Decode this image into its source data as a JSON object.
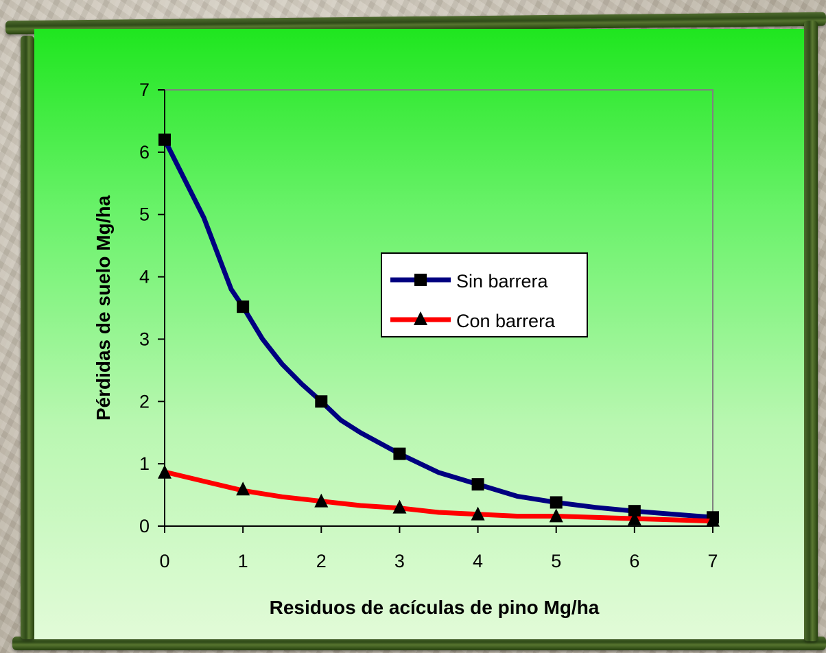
{
  "chart_data": {
    "type": "line",
    "xlabel": "Residuos de acículas de pino Mg/ha",
    "ylabel": "Pérdidas de suelo Mg/ha",
    "xlim": [
      0,
      7
    ],
    "ylim": [
      0,
      7
    ],
    "x_ticks": [
      "0",
      "1",
      "2",
      "3",
      "4",
      "5",
      "6",
      "7"
    ],
    "y_ticks": [
      "0",
      "1",
      "2",
      "3",
      "4",
      "5",
      "6",
      "7"
    ],
    "grid": false,
    "legend_position": "center-right",
    "series": [
      {
        "name": "Sin barrera",
        "color": "#000080",
        "marker": "square",
        "markers": [
          [
            0,
            6.2
          ],
          [
            1,
            3.52
          ],
          [
            2,
            2.0
          ],
          [
            3,
            1.16
          ],
          [
            4,
            0.67
          ],
          [
            5,
            0.38
          ],
          [
            6,
            0.24
          ],
          [
            7,
            0.14
          ]
        ],
        "curve": [
          [
            0,
            6.2
          ],
          [
            0.5,
            4.95
          ],
          [
            0.85,
            3.8
          ],
          [
            1,
            3.52
          ],
          [
            1.25,
            3.0
          ],
          [
            1.5,
            2.6
          ],
          [
            1.75,
            2.28
          ],
          [
            2,
            2.0
          ],
          [
            2.25,
            1.7
          ],
          [
            2.5,
            1.5
          ],
          [
            3,
            1.16
          ],
          [
            3.5,
            0.86
          ],
          [
            4,
            0.67
          ],
          [
            4.5,
            0.48
          ],
          [
            5,
            0.38
          ],
          [
            5.5,
            0.3
          ],
          [
            6,
            0.24
          ],
          [
            6.5,
            0.19
          ],
          [
            7,
            0.14
          ]
        ]
      },
      {
        "name": "Con barrera",
        "color": "#ff0000",
        "marker": "triangle",
        "markers": [
          [
            0,
            0.85
          ],
          [
            1,
            0.58
          ],
          [
            2,
            0.39
          ],
          [
            3,
            0.29
          ],
          [
            4,
            0.18
          ],
          [
            5,
            0.15
          ],
          [
            6,
            0.1
          ],
          [
            7,
            0.08
          ]
        ],
        "curve": [
          [
            0,
            0.87
          ],
          [
            0.5,
            0.72
          ],
          [
            1,
            0.57
          ],
          [
            1.5,
            0.47
          ],
          [
            2,
            0.4
          ],
          [
            2.5,
            0.33
          ],
          [
            3,
            0.29
          ],
          [
            3.5,
            0.22
          ],
          [
            4,
            0.19
          ],
          [
            4.5,
            0.16
          ],
          [
            5,
            0.16
          ],
          [
            6,
            0.12
          ],
          [
            7,
            0.08
          ]
        ]
      }
    ]
  }
}
